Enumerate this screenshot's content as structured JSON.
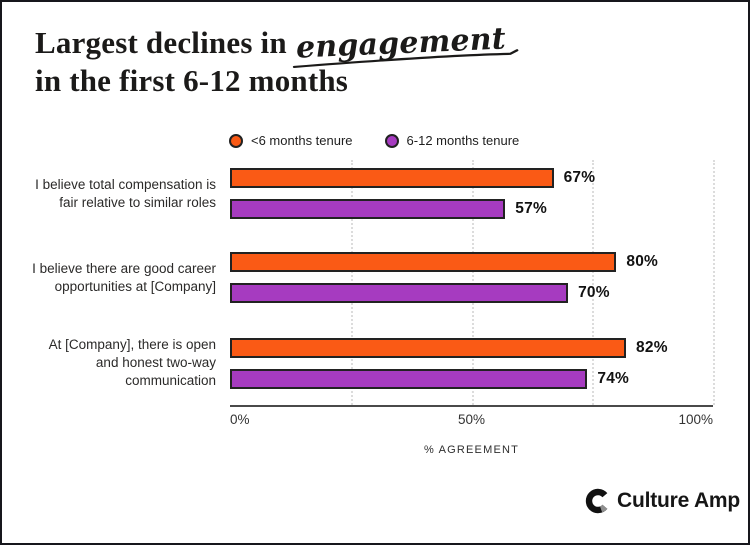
{
  "page": {
    "background": "#ffffff",
    "border_color": "#17171c"
  },
  "title": {
    "prefix": "Largest declines in",
    "highlight": "engagement",
    "line2": "in the first 6-12 months"
  },
  "legend": {
    "items": [
      {
        "label": "<6 months tenure",
        "color": "#FA5A15"
      },
      {
        "label": "6-12 months tenure",
        "color": "#A63BC0"
      }
    ]
  },
  "chart_data": {
    "type": "bar",
    "orientation": "horizontal",
    "title": "Largest declines in engagement in the first 6-12 months",
    "categories": [
      "I believe total compensation is fair relative to similar roles",
      "I believe there are good career opportunities at [Company]",
      "At [Company], there is open and honest two-way communication"
    ],
    "series": [
      {
        "name": "<6 months tenure",
        "color": "#FA5A15",
        "values": [
          67,
          80,
          82
        ]
      },
      {
        "name": "6-12 months tenure",
        "color": "#A63BC0",
        "values": [
          57,
          70,
          74
        ]
      }
    ],
    "value_suffix": "%",
    "xlabel": "% AGREEMENT",
    "x_ticks": [
      "0%",
      "50%",
      "100%"
    ],
    "xlim": [
      0,
      100
    ],
    "gridlines_percent": [
      25,
      50,
      75,
      100
    ],
    "bar_border_color": "#222222",
    "gridline_color": "#dcdcdc",
    "grid": true,
    "legend_position": "top"
  },
  "footer": {
    "brand": "Culture Amp"
  }
}
